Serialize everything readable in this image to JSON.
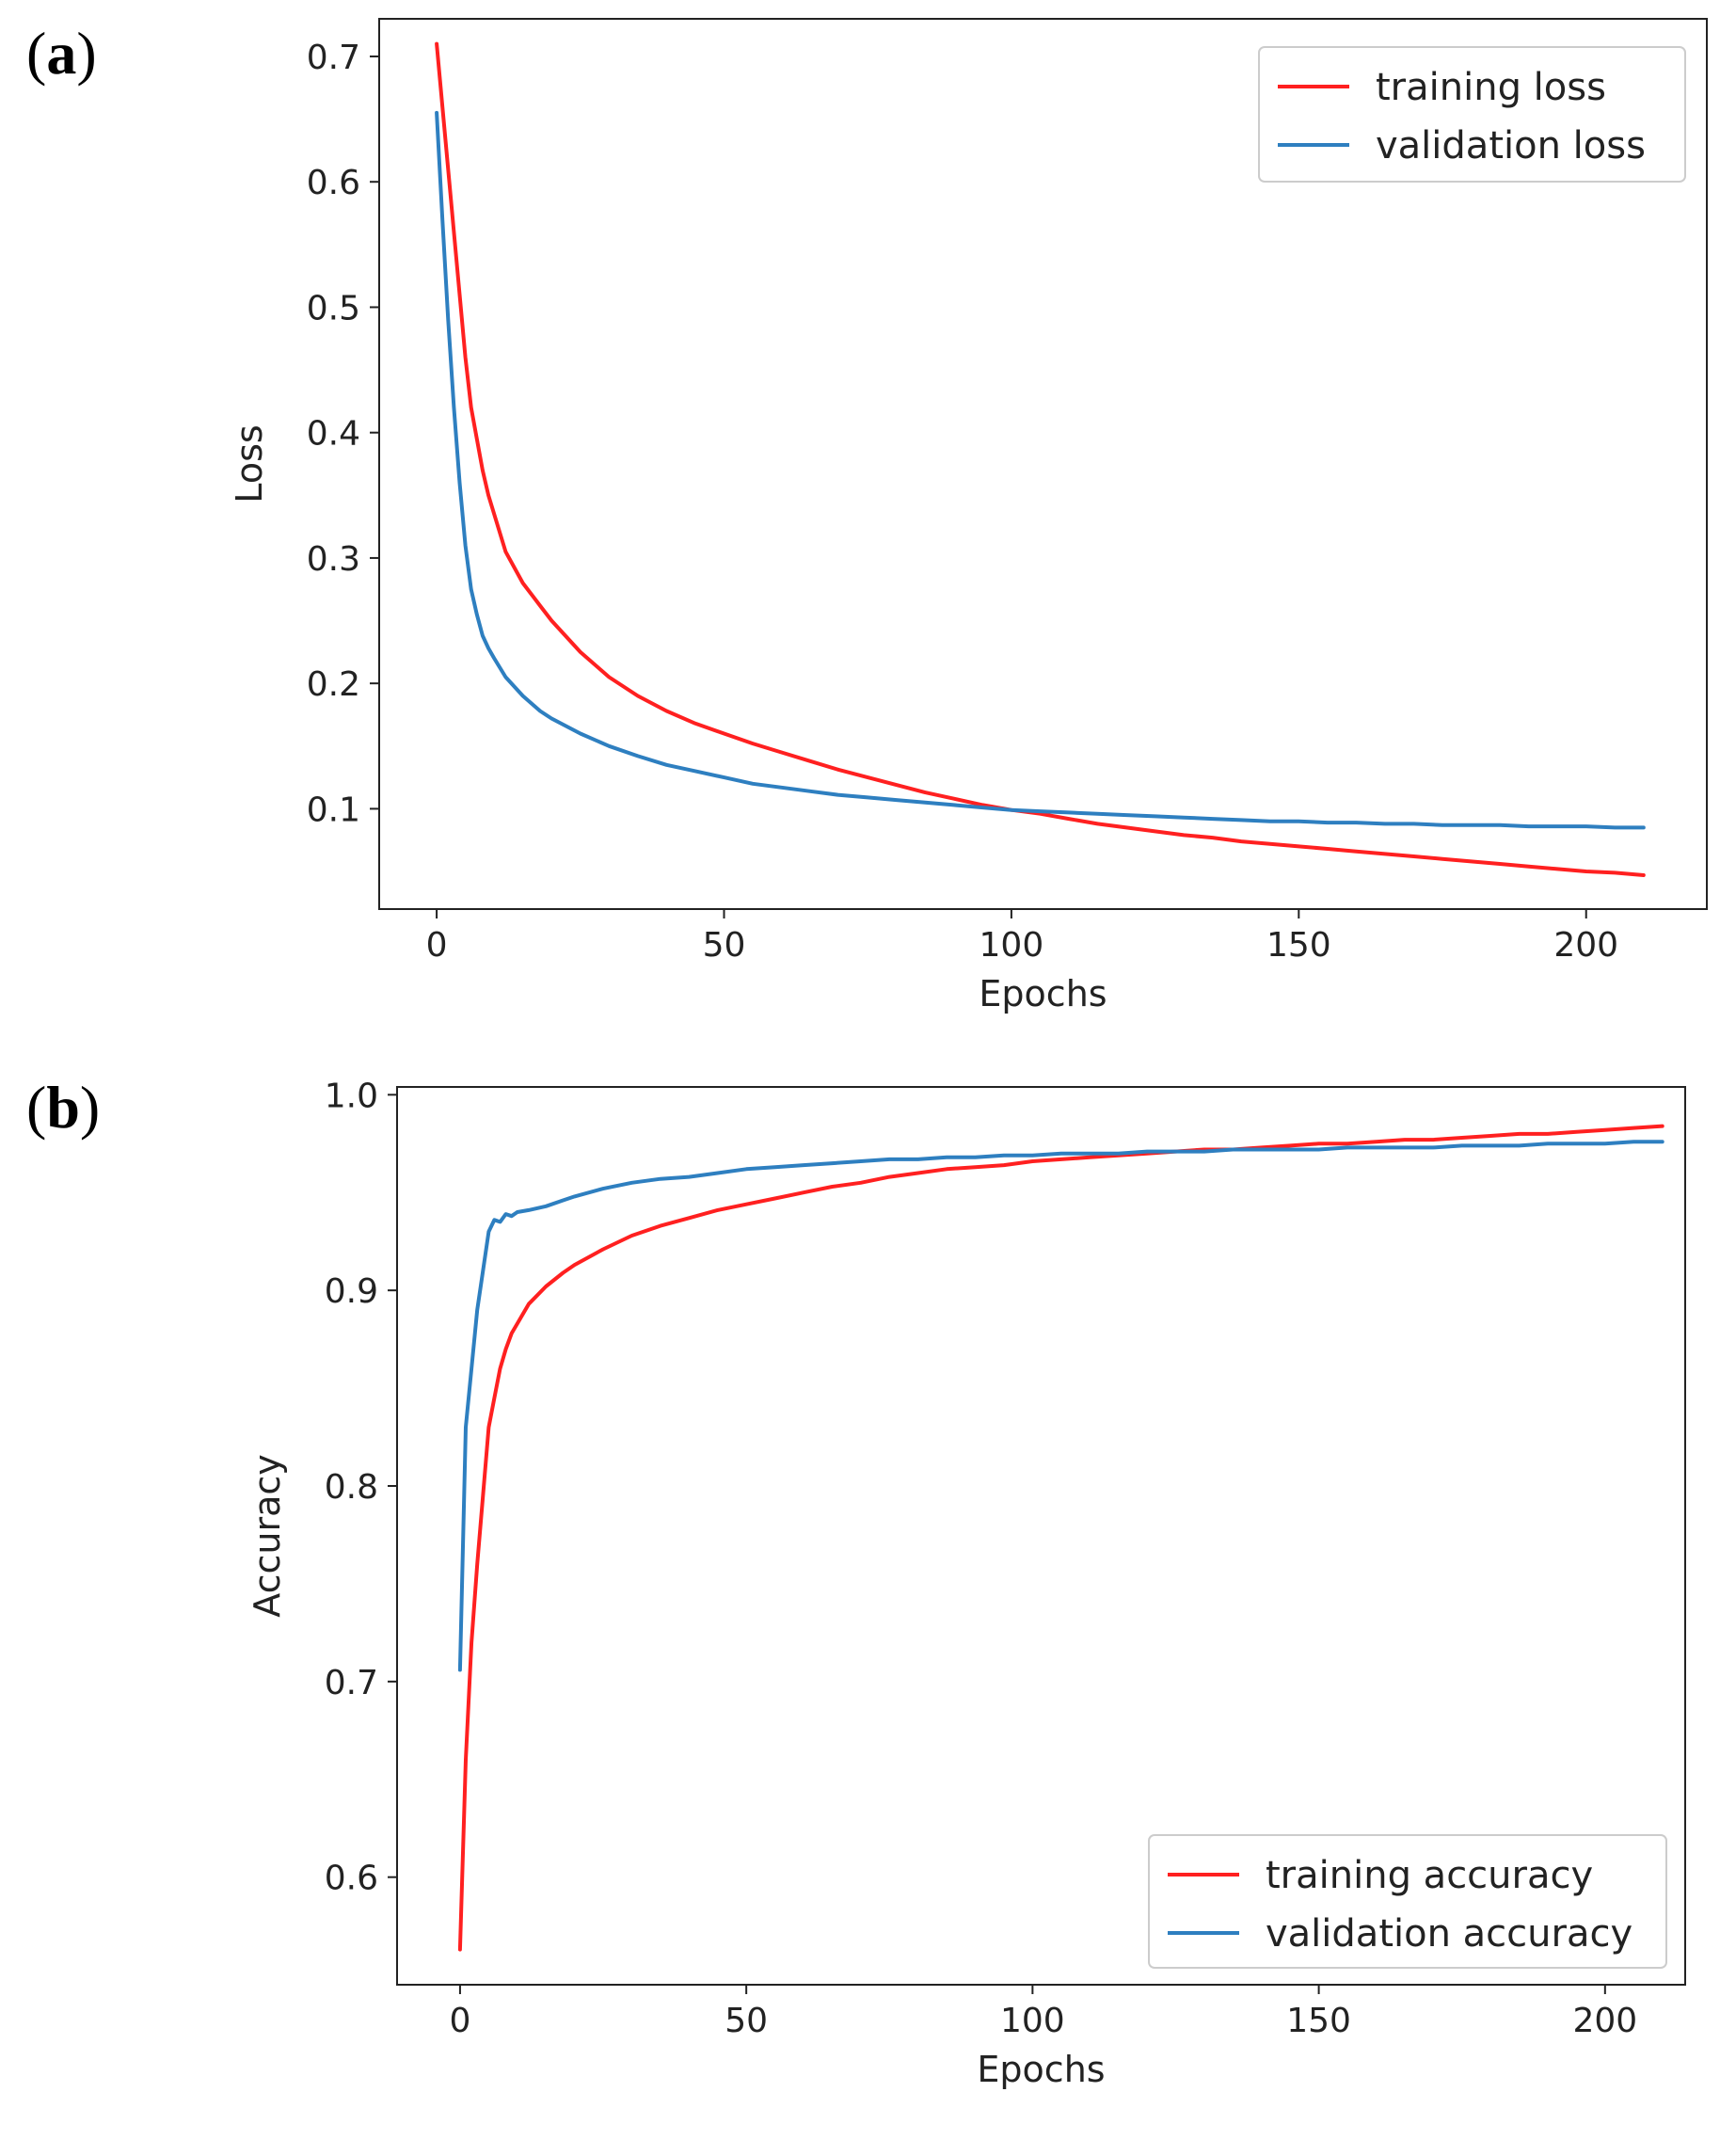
{
  "panels": {
    "a": {
      "open": "(",
      "letter": "a",
      "close": ")"
    },
    "b": {
      "open": "(",
      "letter": "b",
      "close": ")"
    }
  },
  "colors": {
    "training": "#ff2020",
    "validation": "#2e7fc0"
  },
  "chart_data": [
    {
      "type": "line",
      "panel": "a",
      "xlabel": "Epochs",
      "ylabel": "Loss",
      "xlim": [
        -10,
        221
      ],
      "ylim": [
        0.02,
        0.73
      ],
      "xticks": [
        0,
        50,
        100,
        150,
        200
      ],
      "xtick_labels": [
        "0",
        "50",
        "100",
        "150",
        "200"
      ],
      "yticks": [
        0.1,
        0.2,
        0.3,
        0.4,
        0.5,
        0.6,
        0.7
      ],
      "ytick_labels": [
        "0.1",
        "0.2",
        "0.3",
        "0.4",
        "0.5",
        "0.6",
        "0.7"
      ],
      "legend_position": "upper right",
      "series": [
        {
          "name": "training loss",
          "color_key": "training",
          "x": [
            0,
            1,
            2,
            3,
            4,
            5,
            6,
            7,
            8,
            9,
            10,
            12,
            15,
            18,
            20,
            25,
            30,
            35,
            40,
            45,
            50,
            55,
            60,
            65,
            70,
            75,
            80,
            85,
            90,
            95,
            100,
            105,
            110,
            115,
            120,
            125,
            130,
            135,
            140,
            145,
            150,
            155,
            160,
            165,
            170,
            175,
            180,
            185,
            190,
            195,
            200,
            205,
            210
          ],
          "y": [
            0.71,
            0.66,
            0.61,
            0.56,
            0.51,
            0.46,
            0.42,
            0.395,
            0.37,
            0.35,
            0.335,
            0.305,
            0.28,
            0.262,
            0.25,
            0.225,
            0.205,
            0.19,
            0.178,
            0.168,
            0.16,
            0.152,
            0.145,
            0.138,
            0.131,
            0.125,
            0.119,
            0.113,
            0.108,
            0.103,
            0.099,
            0.096,
            0.092,
            0.088,
            0.085,
            0.082,
            0.079,
            0.077,
            0.074,
            0.072,
            0.07,
            0.068,
            0.066,
            0.064,
            0.062,
            0.06,
            0.058,
            0.056,
            0.054,
            0.052,
            0.05,
            0.049,
            0.047
          ]
        },
        {
          "name": "validation loss",
          "color_key": "validation",
          "x": [
            0,
            1,
            2,
            3,
            4,
            5,
            6,
            7,
            8,
            9,
            10,
            12,
            15,
            18,
            20,
            25,
            30,
            35,
            40,
            45,
            50,
            55,
            60,
            65,
            70,
            75,
            80,
            85,
            90,
            95,
            100,
            105,
            110,
            115,
            120,
            125,
            130,
            135,
            140,
            145,
            150,
            155,
            160,
            165,
            170,
            175,
            180,
            185,
            190,
            195,
            200,
            205,
            210
          ],
          "y": [
            0.655,
            0.57,
            0.49,
            0.42,
            0.36,
            0.31,
            0.275,
            0.255,
            0.238,
            0.228,
            0.22,
            0.205,
            0.19,
            0.178,
            0.172,
            0.16,
            0.15,
            0.142,
            0.135,
            0.13,
            0.125,
            0.12,
            0.117,
            0.114,
            0.111,
            0.109,
            0.107,
            0.105,
            0.103,
            0.101,
            0.099,
            0.098,
            0.097,
            0.096,
            0.095,
            0.094,
            0.093,
            0.092,
            0.091,
            0.09,
            0.09,
            0.089,
            0.089,
            0.088,
            0.088,
            0.087,
            0.087,
            0.087,
            0.086,
            0.086,
            0.086,
            0.085,
            0.085
          ]
        }
      ]
    },
    {
      "type": "line",
      "panel": "b",
      "xlabel": "Epochs",
      "ylabel": "Accuracy",
      "xlim": [
        -11,
        214
      ],
      "ylim": [
        0.545,
        1.004
      ],
      "xticks": [
        0,
        50,
        100,
        150,
        200
      ],
      "xtick_labels": [
        "0",
        "50",
        "100",
        "150",
        "200"
      ],
      "yticks": [
        0.6,
        0.7,
        0.8,
        0.9,
        1.0
      ],
      "ytick_labels": [
        "0.6",
        "0.7",
        "0.8",
        "0.9",
        "1.0"
      ],
      "legend_position": "lower right",
      "series": [
        {
          "name": "training accuracy",
          "color_key": "training",
          "x": [
            0,
            1,
            2,
            3,
            4,
            5,
            6,
            7,
            8,
            9,
            10,
            12,
            15,
            18,
            20,
            25,
            30,
            35,
            40,
            45,
            50,
            55,
            60,
            65,
            70,
            75,
            80,
            85,
            90,
            95,
            100,
            105,
            110,
            115,
            120,
            125,
            130,
            135,
            140,
            145,
            150,
            155,
            160,
            165,
            170,
            175,
            180,
            185,
            190,
            195,
            200,
            205,
            210
          ],
          "y": [
            0.563,
            0.66,
            0.72,
            0.76,
            0.795,
            0.83,
            0.845,
            0.86,
            0.87,
            0.878,
            0.883,
            0.893,
            0.902,
            0.909,
            0.913,
            0.921,
            0.928,
            0.933,
            0.937,
            0.941,
            0.944,
            0.947,
            0.95,
            0.953,
            0.955,
            0.958,
            0.96,
            0.962,
            0.963,
            0.964,
            0.966,
            0.967,
            0.968,
            0.969,
            0.97,
            0.971,
            0.972,
            0.972,
            0.973,
            0.974,
            0.975,
            0.975,
            0.976,
            0.977,
            0.977,
            0.978,
            0.979,
            0.98,
            0.98,
            0.981,
            0.982,
            0.983,
            0.984
          ]
        },
        {
          "name": "validation accuracy",
          "color_key": "validation",
          "x": [
            0,
            1,
            2,
            3,
            4,
            5,
            6,
            7,
            8,
            9,
            10,
            12,
            15,
            18,
            20,
            25,
            30,
            35,
            40,
            45,
            50,
            55,
            60,
            65,
            70,
            75,
            80,
            85,
            90,
            95,
            100,
            105,
            110,
            115,
            120,
            125,
            130,
            135,
            140,
            145,
            150,
            155,
            160,
            165,
            170,
            175,
            180,
            185,
            190,
            195,
            200,
            205,
            210
          ],
          "y": [
            0.706,
            0.83,
            0.86,
            0.89,
            0.91,
            0.93,
            0.936,
            0.935,
            0.939,
            0.938,
            0.94,
            0.941,
            0.943,
            0.946,
            0.948,
            0.952,
            0.955,
            0.957,
            0.958,
            0.96,
            0.962,
            0.963,
            0.964,
            0.965,
            0.966,
            0.967,
            0.967,
            0.968,
            0.968,
            0.969,
            0.969,
            0.97,
            0.97,
            0.97,
            0.971,
            0.971,
            0.971,
            0.972,
            0.972,
            0.972,
            0.972,
            0.973,
            0.973,
            0.973,
            0.973,
            0.974,
            0.974,
            0.974,
            0.975,
            0.975,
            0.975,
            0.976,
            0.976
          ]
        }
      ]
    }
  ]
}
